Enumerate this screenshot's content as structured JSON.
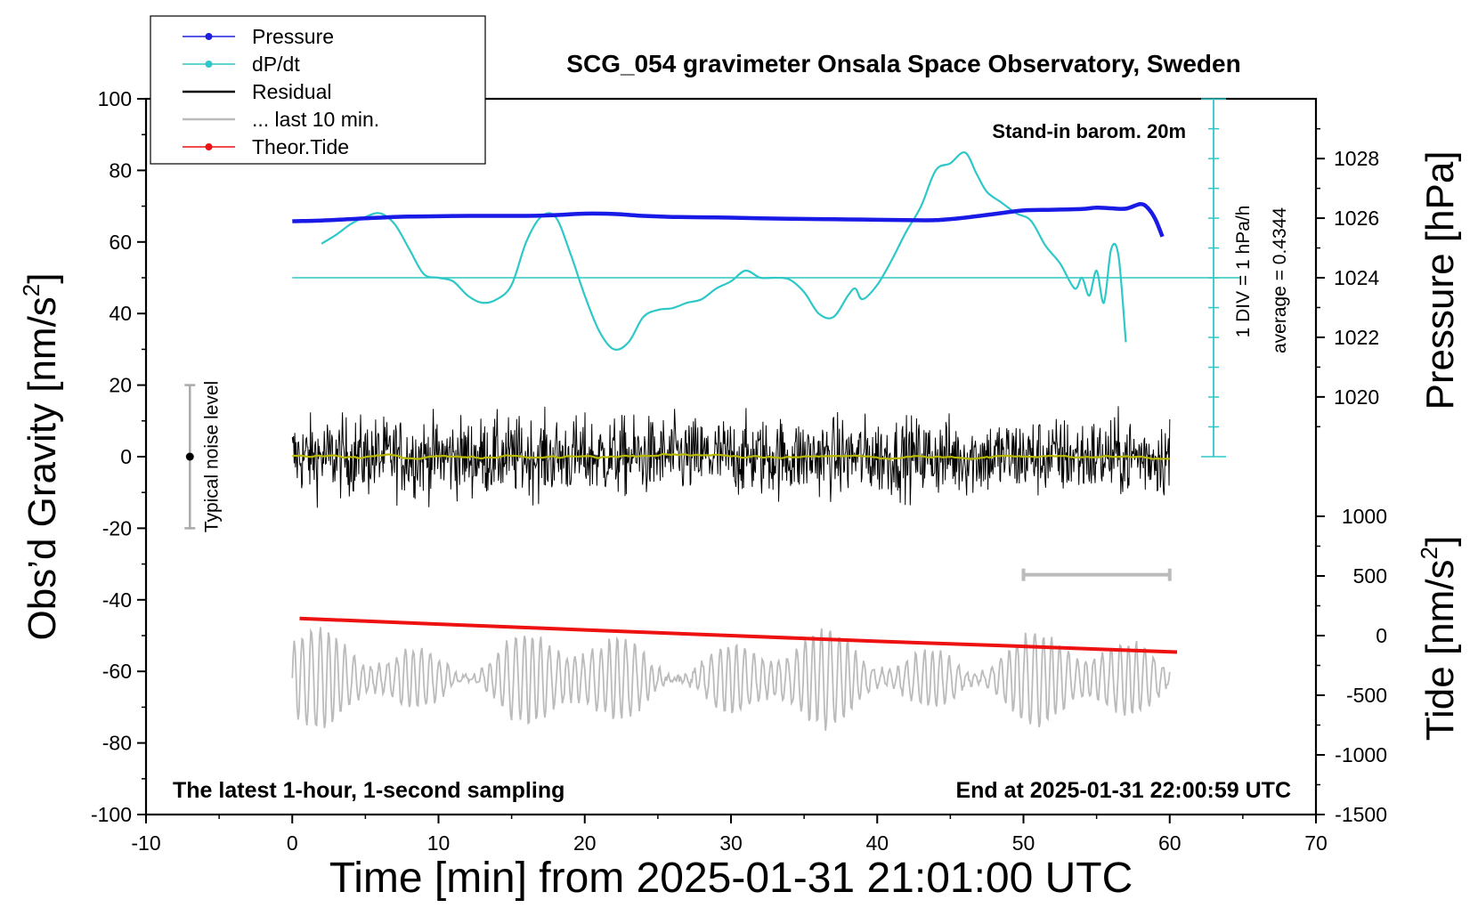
{
  "chart_data": {
    "type": "line",
    "title": "SCG_054 gravimeter Onsala Space Observatory, Sweden",
    "xlabel": "Time [min] from 2025-01-31 21:01:00 UTC",
    "xlim": [
      -10,
      70
    ],
    "x_ticks": [
      "-10",
      "0",
      "10",
      "20",
      "30",
      "40",
      "50",
      "60",
      "70"
    ],
    "y_left": {
      "label_main": "Obs’d Gravity [nm/s",
      "label_sup": "2",
      "label_tail": "]",
      "lim": [
        -100,
        100
      ],
      "ticks": [
        "100",
        "80",
        "60",
        "40",
        "20",
        "0",
        "-20",
        "-40",
        "-60",
        "-80",
        "-100"
      ]
    },
    "y_right_pressure": {
      "label": "Pressure [hPa]",
      "ticks": [
        "1028",
        "1026",
        "1024",
        "1022",
        "1020"
      ],
      "tick_values": [
        1028,
        1026,
        1024,
        1022,
        1020
      ],
      "map": {
        "value_a": 1024,
        "gravity_a": 50,
        "value_b": 1028,
        "gravity_b": 83.3
      }
    },
    "y_right_tide": {
      "label_main": "Tide [nm/s",
      "label_sup": "2",
      "label_tail": "]",
      "ticks": [
        "1000",
        "500",
        "0",
        "-500",
        "-1000",
        "-1500"
      ],
      "tick_values": [
        1000,
        500,
        0,
        -500,
        -1000,
        -1500
      ],
      "map": {
        "value_a": 0,
        "gravity_a": -50,
        "value_b": -1500,
        "gravity_b": -100
      }
    },
    "legend": {
      "position": "top-left",
      "entries": [
        {
          "label": "Pressure",
          "color": "#1f1fe0",
          "marker": true
        },
        {
          "label": "dP/dt",
          "color": "#2ec8c8",
          "marker": true
        },
        {
          "label": "Residual",
          "color": "#000000",
          "marker": false
        },
        {
          "label": "... last 10 min.",
          "color": "#bbbbbb",
          "marker": false
        },
        {
          "label": "Theor.Tide",
          "color": "#ee1111",
          "marker": true
        }
      ]
    },
    "annotations": {
      "barometer": "Stand-in barom. 20m",
      "dpdt_scale": "1 DIV = 1 hPa/h",
      "dpdt_average": "average = 0.4344",
      "noise": "Typical noise level",
      "bottom_left": "The latest 1-hour, 1-second sampling",
      "bottom_right": "End at 2025-01-31 22:00:59 UTC"
    },
    "noise_bar": {
      "x": -7,
      "center": 0,
      "low": -20,
      "high": 20
    },
    "last10_bracket": {
      "x_start": 50,
      "x_end": 60,
      "y": -33
    },
    "dpdt_scale_axis": {
      "x": 63,
      "y_bottom": 0,
      "y_top": 100,
      "div": 8.33,
      "baseline": 50
    },
    "series": [
      {
        "name": "Pressure",
        "color": "#1a1ae6",
        "x": [
          0,
          2,
          4,
          6,
          8,
          10,
          12,
          14,
          16,
          18,
          20,
          22,
          24,
          26,
          28,
          30,
          32,
          34,
          36,
          38,
          40,
          42,
          44,
          46,
          48,
          50,
          52,
          54,
          55,
          56,
          57,
          58,
          58.5,
          59,
          59.5
        ],
        "y": [
          65.8,
          66.0,
          66.4,
          66.8,
          67.1,
          67.2,
          67.3,
          67.3,
          67.3,
          67.5,
          67.9,
          67.8,
          67.3,
          67.0,
          66.9,
          66.8,
          66.6,
          66.5,
          66.4,
          66.3,
          66.2,
          66.1,
          66.1,
          66.8,
          67.8,
          68.8,
          69.0,
          69.2,
          69.6,
          69.4,
          69.3,
          70.6,
          69.5,
          66.5,
          61.5
        ]
      },
      {
        "name": "dP/dt",
        "color": "#2ec8c8",
        "x": [
          2,
          3,
          4,
          5,
          6,
          7,
          8,
          9,
          10,
          11,
          12,
          13,
          14,
          15,
          16,
          17,
          18,
          19,
          20,
          21,
          22,
          23,
          24,
          25,
          26,
          27,
          28,
          29,
          30,
          31,
          32,
          33,
          34,
          35,
          36,
          37,
          38,
          38.5,
          39,
          40,
          41,
          42,
          43,
          44,
          45,
          46,
          46.8,
          47.5,
          48.5,
          49.5,
          50.5,
          51.5,
          52.5,
          53.5,
          54,
          54.5,
          55,
          55.5,
          56,
          56.5,
          57
        ],
        "y": [
          59.5,
          62,
          65,
          67,
          68,
          65,
          58,
          51,
          50,
          49,
          45,
          43,
          44,
          48,
          60,
          67,
          67,
          57,
          45,
          35,
          30,
          32,
          39,
          41,
          41.5,
          43,
          44,
          47,
          49,
          52,
          50,
          50,
          49.5,
          46,
          40,
          39,
          45,
          47,
          44,
          48,
          55,
          63,
          70,
          80,
          82,
          85,
          79,
          74,
          71,
          68,
          66,
          59,
          54,
          47,
          50,
          45,
          52,
          43,
          58,
          56,
          32
        ]
      },
      {
        "name": "Theor.Tide",
        "color": "#ee1111",
        "x": [
          0.5,
          10,
          20,
          30,
          40,
          50,
          60.5
        ],
        "y": [
          -45.2,
          -46.8,
          -48.4,
          -50.0,
          -51.6,
          -53.0,
          -54.6
        ]
      }
    ],
    "generated_series": [
      {
        "name": "Residual",
        "color": "#000000",
        "description": "1-second residual noise trace, amplitude about ±15 nm/s2, x 0 to 60"
      },
      {
        "name": "Residual smoothed",
        "color": "#b8b800",
        "description": "running mean of residual, near 0"
      },
      {
        "name": "... last 10 min.",
        "color": "#bbbbbb",
        "description": "oscillating trace centred near -62 nm/s2, amplitude about ±15, x 0 to 60"
      }
    ]
  }
}
